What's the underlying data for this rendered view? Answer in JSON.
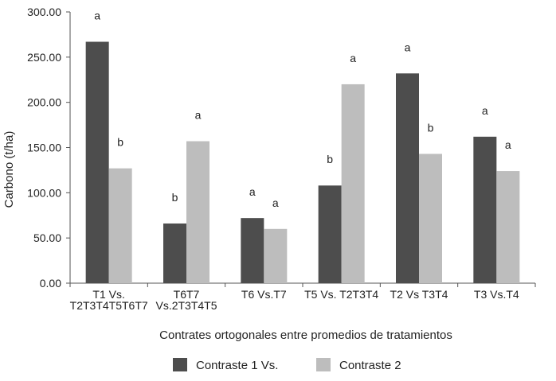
{
  "chart_data": {
    "type": "bar",
    "ylabel": "Carbono (t/ha)",
    "xlabel": "Contrates ortogonales entre promedios de tratamientos",
    "ylim": [
      0,
      300
    ],
    "yticks": [
      "0.00",
      "50.00",
      "100.00",
      "150.00",
      "200.00",
      "250.00",
      "300.00"
    ],
    "ytick_values": [
      0,
      50,
      100,
      150,
      200,
      250,
      300
    ],
    "categories": [
      [
        "T1 Vs.",
        "T2T3T4T5T6T7"
      ],
      [
        "T6T7",
        "Vs.2T3T4T5"
      ],
      [
        "T6 Vs.T7"
      ],
      [
        "T5 Vs. T2T3T4"
      ],
      [
        "T2 Vs T3T4"
      ],
      [
        "T3 Vs.T4"
      ]
    ],
    "series": [
      {
        "name": "Contraste 1 Vs.",
        "color": "#4d4d4d",
        "values": [
          267,
          66,
          72,
          108,
          232,
          162
        ],
        "labels": [
          "a",
          "b",
          "a",
          "b",
          "a",
          "a"
        ]
      },
      {
        "name": "Contraste 2",
        "color": "#bdbdbd",
        "values": [
          127,
          157,
          60,
          220,
          143,
          124
        ],
        "labels": [
          "b",
          "a",
          "a",
          "a",
          "b",
          "a"
        ]
      }
    ],
    "grid": false,
    "legend_position": "bottom-center"
  }
}
